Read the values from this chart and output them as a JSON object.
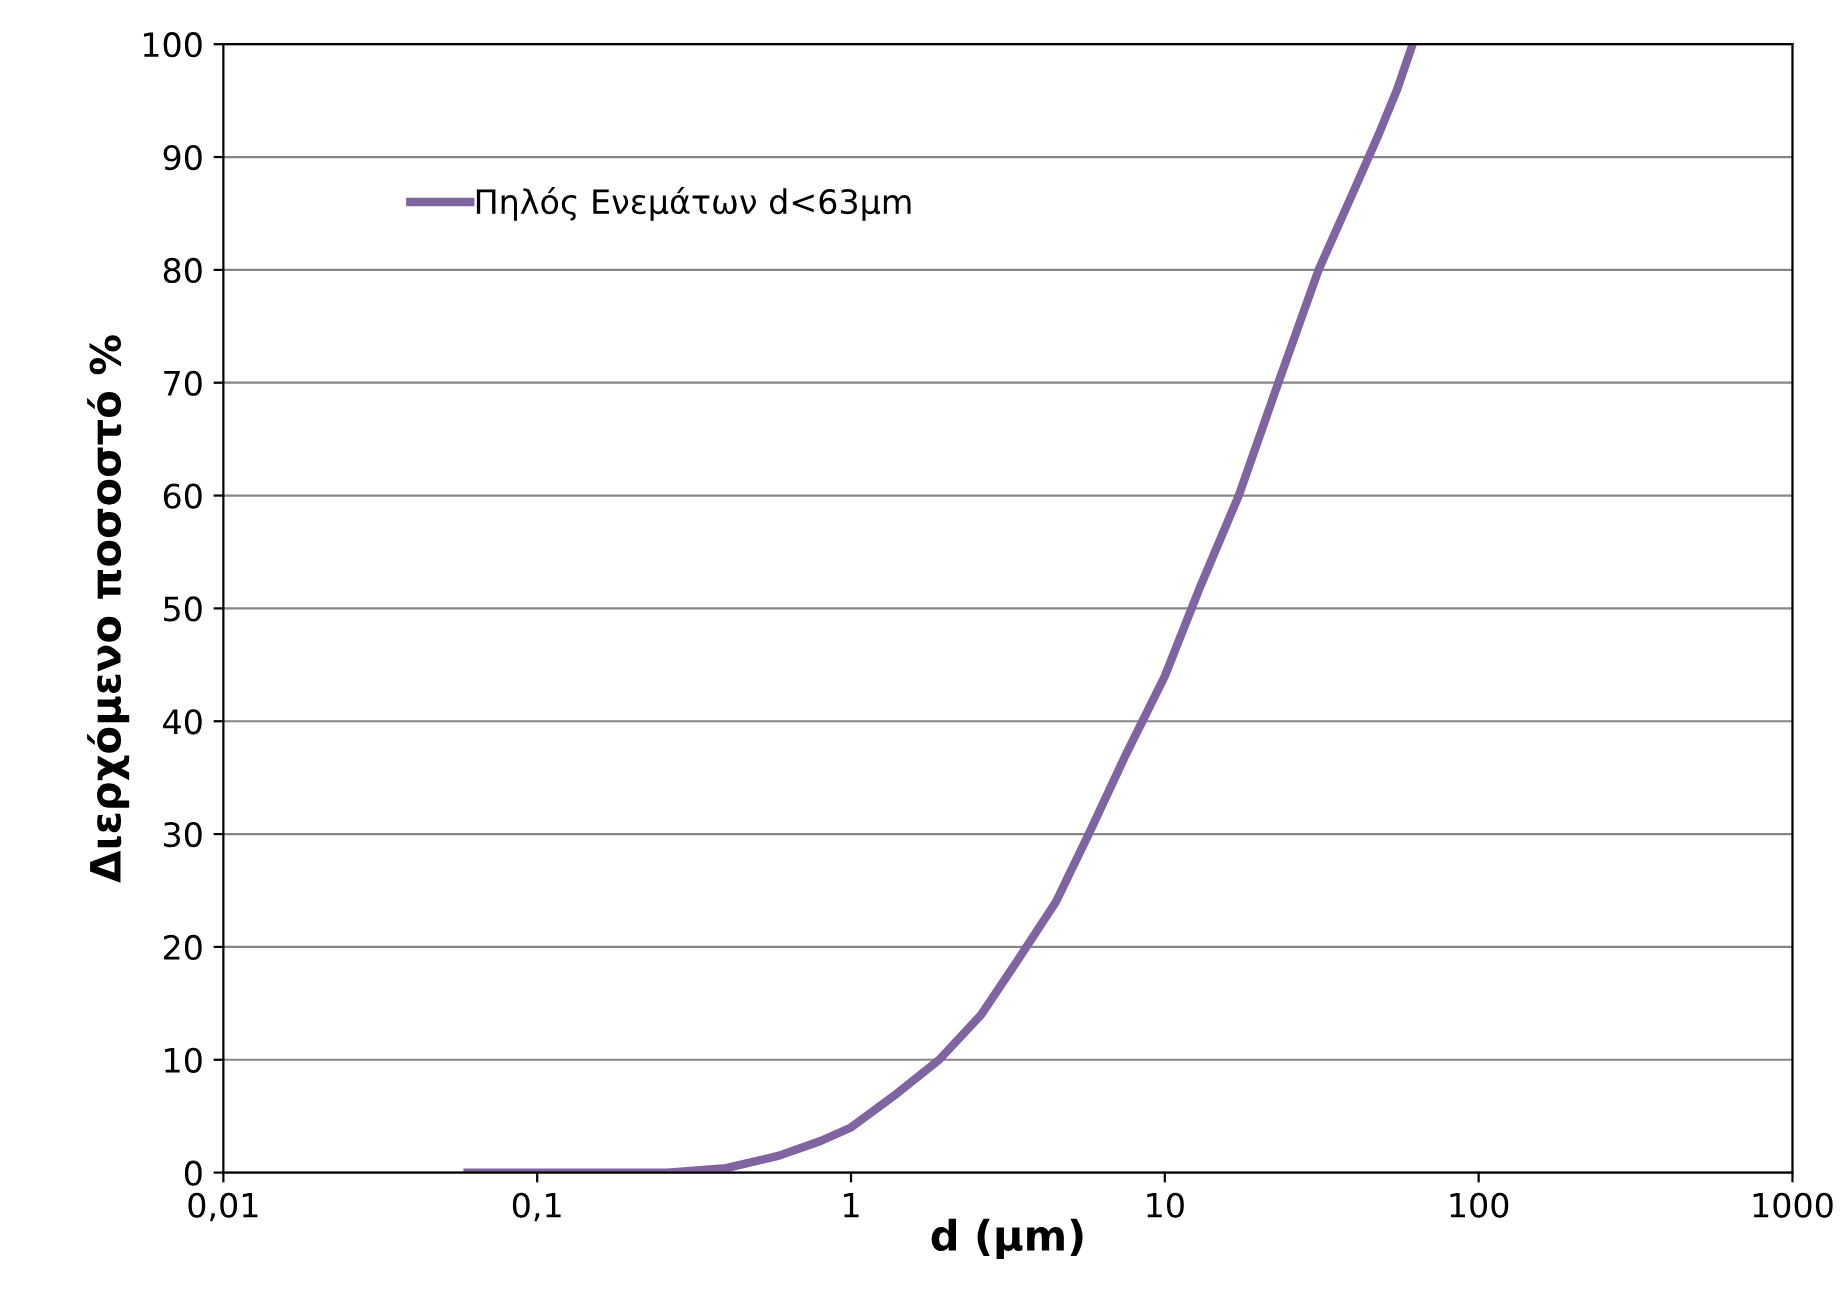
{
  "chart_data": {
    "type": "line",
    "xlabel": "d (μm)",
    "ylabel": "Διερχόμενο ποσοστό %",
    "log": "x",
    "grid": "y",
    "legend": "top left",
    "marker": "none",
    "line_style": "solid",
    "xlim": [
      0.01,
      1000
    ],
    "xticks": [
      {
        "value": 0.01,
        "label": "0,01"
      },
      {
        "value": 0.1,
        "label": "0,1"
      },
      1,
      10,
      100,
      1000
    ],
    "ylim": [
      0,
      100
    ],
    "yticks": [
      0,
      10,
      20,
      30,
      40,
      50,
      60,
      70,
      80,
      90,
      100
    ],
    "series": [
      {
        "name": "Πηλός Ενεμάτων d<63μm",
        "color": "#8064a2",
        "x": [
          0.06,
          0.15,
          0.26,
          0.4,
          0.59,
          0.8,
          1,
          1.4,
          1.91,
          2.6,
          3.43,
          4.5,
          5.72,
          7.5,
          10,
          13,
          17.2,
          23,
          30.9,
          40,
          48,
          55,
          61.6
        ],
        "values": [
          0,
          0,
          0,
          0.4,
          1.5,
          2.8,
          4,
          7,
          10,
          14,
          19,
          24,
          30,
          37,
          44,
          52,
          60,
          70,
          80,
          87,
          92,
          96,
          100
        ]
      }
    ]
  }
}
